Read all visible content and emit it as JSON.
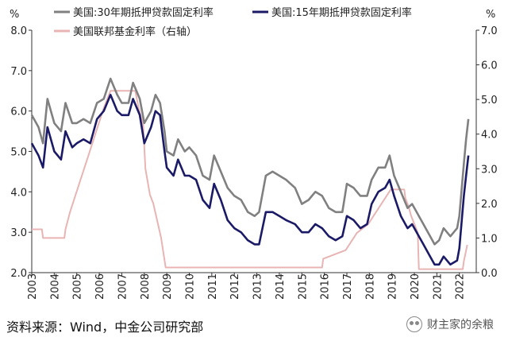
{
  "chart_data": {
    "type": "line",
    "x_ticks": [
      "2003",
      "2004",
      "2005",
      "2006",
      "2007",
      "2008",
      "2009",
      "2010",
      "2011",
      "2012",
      "2013",
      "2014",
      "2015",
      "2016",
      "2017",
      "2018",
      "2019",
      "2020",
      "2021",
      "2022"
    ],
    "left_axis": {
      "unit": "%",
      "ylim": [
        2.0,
        8.0
      ],
      "ticks": [
        "2.0",
        "3.0",
        "4.0",
        "5.0",
        "6.0",
        "7.0",
        "8.0"
      ]
    },
    "right_axis": {
      "unit": "%",
      "ylim": [
        0.0,
        7.0
      ],
      "ticks": [
        "0.0",
        "1.0",
        "2.0",
        "3.0",
        "4.0",
        "5.0",
        "6.0",
        "7.0"
      ]
    },
    "grid": false,
    "legend_position": "top",
    "series": [
      {
        "name": "美国:30年期抵押贷款固定利率",
        "color": "#808080",
        "axis": "left",
        "points": [
          [
            2003.0,
            5.9
          ],
          [
            2003.3,
            5.6
          ],
          [
            2003.5,
            5.2
          ],
          [
            2003.7,
            6.3
          ],
          [
            2004.0,
            5.7
          ],
          [
            2004.3,
            5.5
          ],
          [
            2004.5,
            6.2
          ],
          [
            2004.8,
            5.7
          ],
          [
            2005.0,
            5.7
          ],
          [
            2005.3,
            5.8
          ],
          [
            2005.6,
            5.7
          ],
          [
            2005.9,
            6.2
          ],
          [
            2006.2,
            6.3
          ],
          [
            2006.5,
            6.8
          ],
          [
            2006.8,
            6.4
          ],
          [
            2007.0,
            6.2
          ],
          [
            2007.3,
            6.2
          ],
          [
            2007.5,
            6.7
          ],
          [
            2007.8,
            6.3
          ],
          [
            2008.0,
            5.7
          ],
          [
            2008.3,
            6.0
          ],
          [
            2008.5,
            6.4
          ],
          [
            2008.7,
            6.2
          ],
          [
            2008.9,
            5.5
          ],
          [
            2009.0,
            5.0
          ],
          [
            2009.3,
            4.9
          ],
          [
            2009.5,
            5.3
          ],
          [
            2009.8,
            5.0
          ],
          [
            2010.0,
            5.1
          ],
          [
            2010.3,
            4.9
          ],
          [
            2010.6,
            4.4
          ],
          [
            2010.9,
            4.3
          ],
          [
            2011.1,
            4.9
          ],
          [
            2011.4,
            4.5
          ],
          [
            2011.7,
            4.1
          ],
          [
            2012.0,
            3.9
          ],
          [
            2012.3,
            3.8
          ],
          [
            2012.6,
            3.5
          ],
          [
            2012.9,
            3.4
          ],
          [
            2013.1,
            3.5
          ],
          [
            2013.4,
            4.4
          ],
          [
            2013.7,
            4.5
          ],
          [
            2014.0,
            4.4
          ],
          [
            2014.3,
            4.3
          ],
          [
            2014.7,
            4.1
          ],
          [
            2015.0,
            3.7
          ],
          [
            2015.3,
            3.8
          ],
          [
            2015.6,
            4.0
          ],
          [
            2015.9,
            3.9
          ],
          [
            2016.2,
            3.6
          ],
          [
            2016.5,
            3.5
          ],
          [
            2016.8,
            3.5
          ],
          [
            2017.0,
            4.2
          ],
          [
            2017.3,
            4.1
          ],
          [
            2017.6,
            3.9
          ],
          [
            2017.9,
            3.9
          ],
          [
            2018.1,
            4.3
          ],
          [
            2018.4,
            4.6
          ],
          [
            2018.7,
            4.6
          ],
          [
            2018.9,
            4.9
          ],
          [
            2019.1,
            4.4
          ],
          [
            2019.4,
            4.0
          ],
          [
            2019.7,
            3.6
          ],
          [
            2019.9,
            3.7
          ],
          [
            2020.1,
            3.5
          ],
          [
            2020.4,
            3.2
          ],
          [
            2020.7,
            2.9
          ],
          [
            2020.9,
            2.7
          ],
          [
            2021.1,
            2.8
          ],
          [
            2021.3,
            3.1
          ],
          [
            2021.6,
            2.9
          ],
          [
            2021.9,
            3.1
          ],
          [
            2022.0,
            3.4
          ],
          [
            2022.2,
            4.7
          ],
          [
            2022.3,
            5.3
          ],
          [
            2022.4,
            5.8
          ]
        ]
      },
      {
        "name": "美国:15年期抵押贷款固定利率",
        "color": "#1a1a66",
        "axis": "left",
        "points": [
          [
            2003.0,
            5.2
          ],
          [
            2003.3,
            4.9
          ],
          [
            2003.5,
            4.6
          ],
          [
            2003.7,
            5.6
          ],
          [
            2004.0,
            5.0
          ],
          [
            2004.3,
            4.8
          ],
          [
            2004.5,
            5.5
          ],
          [
            2004.8,
            5.1
          ],
          [
            2005.0,
            5.2
          ],
          [
            2005.3,
            5.3
          ],
          [
            2005.6,
            5.2
          ],
          [
            2005.9,
            5.8
          ],
          [
            2006.2,
            6.0
          ],
          [
            2006.5,
            6.4
          ],
          [
            2006.8,
            6.0
          ],
          [
            2007.0,
            5.9
          ],
          [
            2007.3,
            5.9
          ],
          [
            2007.5,
            6.3
          ],
          [
            2007.8,
            5.9
          ],
          [
            2008.0,
            5.2
          ],
          [
            2008.3,
            5.6
          ],
          [
            2008.5,
            6.0
          ],
          [
            2008.7,
            5.9
          ],
          [
            2008.9,
            5.0
          ],
          [
            2009.0,
            4.6
          ],
          [
            2009.3,
            4.4
          ],
          [
            2009.5,
            4.8
          ],
          [
            2009.8,
            4.4
          ],
          [
            2010.0,
            4.4
          ],
          [
            2010.3,
            4.3
          ],
          [
            2010.6,
            3.8
          ],
          [
            2010.9,
            3.6
          ],
          [
            2011.1,
            4.2
          ],
          [
            2011.4,
            3.8
          ],
          [
            2011.7,
            3.3
          ],
          [
            2012.0,
            3.1
          ],
          [
            2012.3,
            3.0
          ],
          [
            2012.6,
            2.8
          ],
          [
            2012.9,
            2.7
          ],
          [
            2013.1,
            2.7
          ],
          [
            2013.4,
            3.5
          ],
          [
            2013.7,
            3.5
          ],
          [
            2014.0,
            3.4
          ],
          [
            2014.3,
            3.3
          ],
          [
            2014.7,
            3.2
          ],
          [
            2015.0,
            3.0
          ],
          [
            2015.3,
            3.0
          ],
          [
            2015.6,
            3.2
          ],
          [
            2015.9,
            3.1
          ],
          [
            2016.2,
            2.9
          ],
          [
            2016.5,
            2.8
          ],
          [
            2016.8,
            2.9
          ],
          [
            2017.0,
            3.4
          ],
          [
            2017.3,
            3.3
          ],
          [
            2017.6,
            3.1
          ],
          [
            2017.9,
            3.2
          ],
          [
            2018.1,
            3.7
          ],
          [
            2018.4,
            4.0
          ],
          [
            2018.7,
            4.1
          ],
          [
            2018.9,
            4.3
          ],
          [
            2019.1,
            3.9
          ],
          [
            2019.4,
            3.4
          ],
          [
            2019.7,
            3.1
          ],
          [
            2019.9,
            3.2
          ],
          [
            2020.1,
            3.0
          ],
          [
            2020.4,
            2.7
          ],
          [
            2020.7,
            2.4
          ],
          [
            2020.9,
            2.2
          ],
          [
            2021.1,
            2.2
          ],
          [
            2021.3,
            2.4
          ],
          [
            2021.6,
            2.2
          ],
          [
            2021.9,
            2.3
          ],
          [
            2022.0,
            2.6
          ],
          [
            2022.2,
            3.9
          ],
          [
            2022.3,
            4.4
          ],
          [
            2022.4,
            4.9
          ]
        ]
      },
      {
        "name": "美国联邦基金利率（右轴）",
        "color": "#e8b4b4",
        "axis": "right",
        "points": [
          [
            2003.0,
            1.25
          ],
          [
            2003.45,
            1.25
          ],
          [
            2003.5,
            1.0
          ],
          [
            2004.45,
            1.0
          ],
          [
            2004.5,
            1.25
          ],
          [
            2004.7,
            1.75
          ],
          [
            2004.95,
            2.25
          ],
          [
            2005.2,
            2.75
          ],
          [
            2005.45,
            3.25
          ],
          [
            2005.7,
            3.75
          ],
          [
            2005.95,
            4.25
          ],
          [
            2006.2,
            4.75
          ],
          [
            2006.5,
            5.25
          ],
          [
            2007.6,
            5.25
          ],
          [
            2007.75,
            4.75
          ],
          [
            2007.95,
            4.25
          ],
          [
            2008.05,
            3.0
          ],
          [
            2008.25,
            2.25
          ],
          [
            2008.4,
            2.0
          ],
          [
            2008.75,
            1.0
          ],
          [
            2008.95,
            0.15
          ],
          [
            2015.9,
            0.15
          ],
          [
            2015.95,
            0.4
          ],
          [
            2016.95,
            0.65
          ],
          [
            2017.2,
            0.9
          ],
          [
            2017.45,
            1.15
          ],
          [
            2017.95,
            1.4
          ],
          [
            2018.2,
            1.65
          ],
          [
            2018.45,
            1.9
          ],
          [
            2018.7,
            2.15
          ],
          [
            2018.95,
            2.4
          ],
          [
            2019.55,
            2.4
          ],
          [
            2019.6,
            2.15
          ],
          [
            2019.75,
            1.9
          ],
          [
            2019.85,
            1.65
          ],
          [
            2020.15,
            1.15
          ],
          [
            2020.2,
            0.1
          ],
          [
            2022.15,
            0.1
          ],
          [
            2022.2,
            0.33
          ],
          [
            2022.35,
            0.8
          ]
        ]
      }
    ]
  },
  "source_note": "资料来源：Wind，中金公司研究部",
  "watermark": "财主家的余粮"
}
